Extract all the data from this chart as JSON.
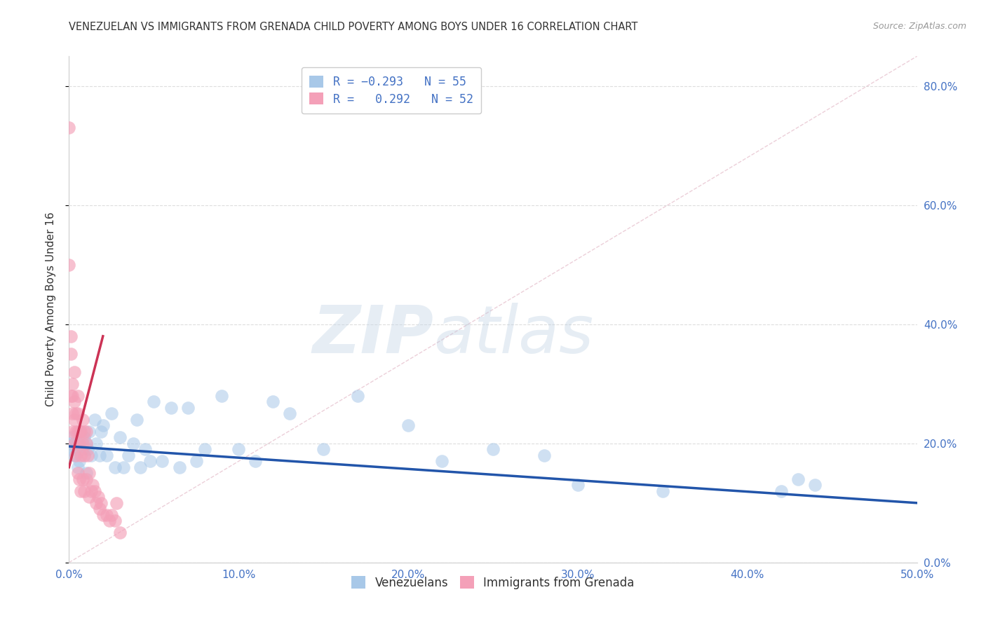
{
  "title": "VENEZUELAN VS IMMIGRANTS FROM GRENADA CHILD POVERTY AMONG BOYS UNDER 16 CORRELATION CHART",
  "source": "Source: ZipAtlas.com",
  "ylabel": "Child Poverty Among Boys Under 16",
  "xlim": [
    0.0,
    0.5
  ],
  "ylim": [
    0.0,
    0.85
  ],
  "yticks": [
    0.0,
    0.2,
    0.4,
    0.6,
    0.8
  ],
  "xticks": [
    0.0,
    0.1,
    0.2,
    0.3,
    0.4,
    0.5
  ],
  "venezuelan_x": [
    0.0,
    0.001,
    0.002,
    0.003,
    0.004,
    0.005,
    0.006,
    0.007,
    0.008,
    0.009,
    0.01,
    0.011,
    0.012,
    0.013,
    0.015,
    0.016,
    0.018,
    0.019,
    0.02,
    0.022,
    0.025,
    0.027,
    0.03,
    0.032,
    0.035,
    0.038,
    0.04,
    0.042,
    0.045,
    0.048,
    0.05,
    0.055,
    0.06,
    0.065,
    0.07,
    0.075,
    0.08,
    0.09,
    0.1,
    0.11,
    0.12,
    0.13,
    0.15,
    0.17,
    0.2,
    0.22,
    0.25,
    0.28,
    0.3,
    0.35,
    0.42,
    0.43,
    0.44,
    0.005,
    0.01
  ],
  "venezuelan_y": [
    0.19,
    0.2,
    0.21,
    0.18,
    0.19,
    0.2,
    0.17,
    0.22,
    0.19,
    0.21,
    0.2,
    0.19,
    0.22,
    0.18,
    0.24,
    0.2,
    0.18,
    0.22,
    0.23,
    0.18,
    0.25,
    0.16,
    0.21,
    0.16,
    0.18,
    0.2,
    0.24,
    0.16,
    0.19,
    0.17,
    0.27,
    0.17,
    0.26,
    0.16,
    0.26,
    0.17,
    0.19,
    0.28,
    0.19,
    0.17,
    0.27,
    0.25,
    0.19,
    0.28,
    0.23,
    0.17,
    0.19,
    0.18,
    0.13,
    0.12,
    0.12,
    0.14,
    0.13,
    0.16,
    0.15
  ],
  "grenada_x": [
    0.0,
    0.0,
    0.001,
    0.001,
    0.001,
    0.002,
    0.002,
    0.002,
    0.003,
    0.003,
    0.003,
    0.004,
    0.004,
    0.005,
    0.005,
    0.005,
    0.006,
    0.006,
    0.007,
    0.007,
    0.008,
    0.008,
    0.009,
    0.009,
    0.01,
    0.01,
    0.011,
    0.012,
    0.013,
    0.014,
    0.015,
    0.016,
    0.017,
    0.018,
    0.019,
    0.02,
    0.022,
    0.024,
    0.025,
    0.027,
    0.028,
    0.03,
    0.002,
    0.003,
    0.004,
    0.005,
    0.006,
    0.007,
    0.008,
    0.009,
    0.01,
    0.012
  ],
  "grenada_y": [
    0.73,
    0.5,
    0.38,
    0.35,
    0.28,
    0.3,
    0.28,
    0.25,
    0.32,
    0.27,
    0.24,
    0.25,
    0.22,
    0.28,
    0.25,
    0.22,
    0.22,
    0.2,
    0.22,
    0.18,
    0.24,
    0.2,
    0.22,
    0.18,
    0.2,
    0.22,
    0.18,
    0.15,
    0.12,
    0.13,
    0.12,
    0.1,
    0.11,
    0.09,
    0.1,
    0.08,
    0.08,
    0.07,
    0.08,
    0.07,
    0.1,
    0.05,
    0.22,
    0.2,
    0.18,
    0.15,
    0.14,
    0.12,
    0.14,
    0.12,
    0.14,
    0.11
  ],
  "blue_line_x": [
    0.0,
    0.5
  ],
  "blue_line_y": [
    0.195,
    0.1
  ],
  "pink_line_x": [
    0.0,
    0.02
  ],
  "pink_line_y": [
    0.16,
    0.38
  ],
  "diag_line_x": [
    0.0,
    0.5
  ],
  "diag_line_y": [
    0.0,
    0.85
  ],
  "title_color": "#333333",
  "source_color": "#999999",
  "axis_tick_color": "#4472c4",
  "scatter_blue_color": "#a8c8e8",
  "scatter_pink_color": "#f4a0b8",
  "trend_blue_color": "#2255aa",
  "trend_pink_color": "#cc3355",
  "diag_color": "#cccccc",
  "grid_color": "#dddddd",
  "watermark_zip": "ZIP",
  "watermark_atlas": "atlas",
  "background_color": "#ffffff"
}
